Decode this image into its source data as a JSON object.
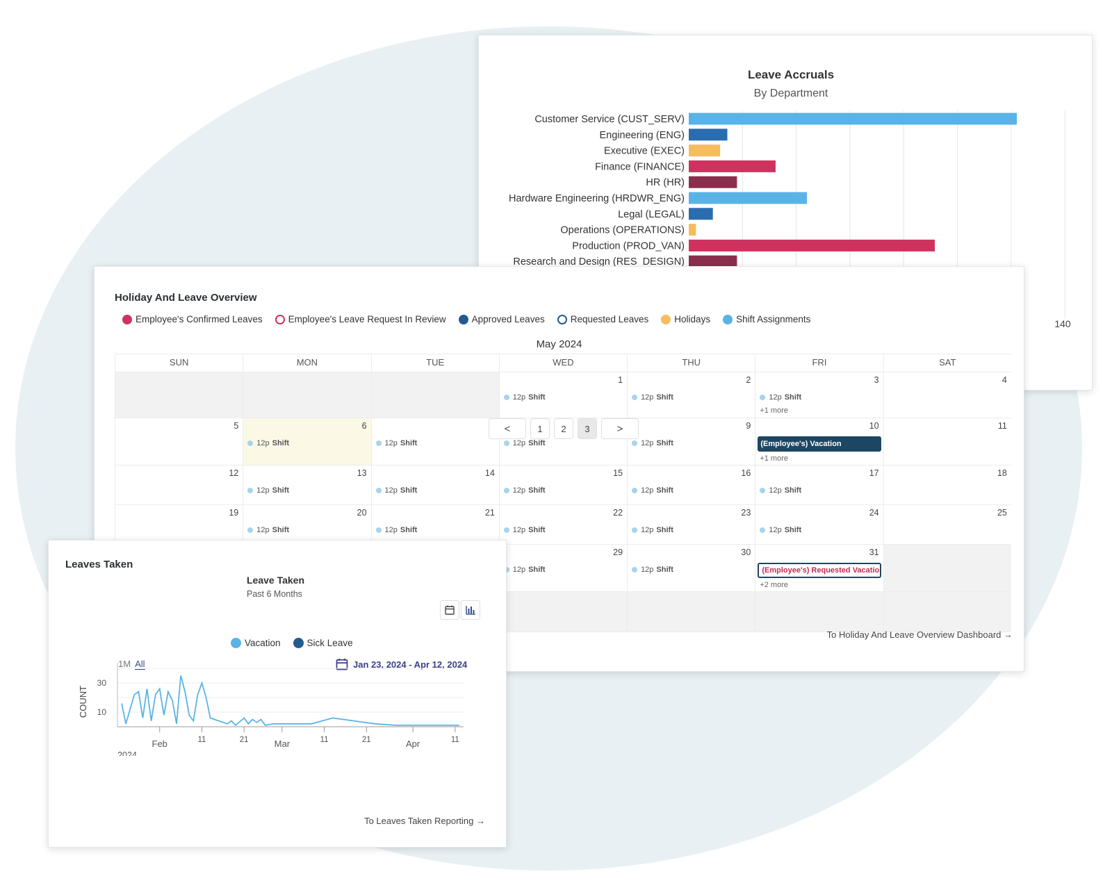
{
  "accruals": {
    "chart_data": {
      "type": "bar",
      "orientation": "horizontal",
      "title": "Leave Accruals",
      "subtitle": "By Department",
      "categories": [
        "Customer Service (CUST_SERV)",
        "Engineering (ENG)",
        "Executive (EXEC)",
        "Finance (FINANCE)",
        "HR (HR)",
        "Hardware Engineering (HRDWR_ENG)",
        "Legal (LEGAL)",
        "Operations (OPERATIONS)",
        "Production (PROD_VAN)",
        "Research and Design (RES_DESIGN)"
      ],
      "values": [
        136,
        16,
        13,
        36,
        20,
        49,
        10,
        3,
        102,
        20
      ],
      "colors": [
        "#5ab3e6",
        "#2a6cb0",
        "#f6bd5c",
        "#d0325f",
        "#8b2e4d",
        "#5ab3e6",
        "#2a6cb0",
        "#f6bd5c",
        "#d0325f",
        "#8b2e4d"
      ],
      "xlim": [
        0,
        155
      ],
      "x_tick_label": "140",
      "grid": true
    }
  },
  "overview": {
    "title": "Holiday And Leave Overview",
    "legend": [
      {
        "label": "Employee's Confirmed Leaves",
        "color": "#d0325f",
        "style": "filled"
      },
      {
        "label": "Employee's Leave Request In Review",
        "color": "#d0325f",
        "style": "outline"
      },
      {
        "label": "Approved Leaves",
        "color": "#245a8f",
        "style": "filled"
      },
      {
        "label": "Requested Leaves",
        "color": "#245a8f",
        "style": "outline"
      },
      {
        "label": "Holidays",
        "color": "#f6bd5c",
        "style": "filled"
      },
      {
        "label": "Shift Assignments",
        "color": "#5ab3e6",
        "style": "filled"
      }
    ],
    "month": "May 2024",
    "weekdays": [
      "SUN",
      "MON",
      "TUE",
      "WED",
      "THU",
      "FRI",
      "SAT"
    ],
    "shift_time": "12p",
    "shift_label": "Shift",
    "weeks": [
      [
        {
          "day": ""
        },
        {
          "day": ""
        },
        {
          "day": ""
        },
        {
          "day": "1",
          "shift": true
        },
        {
          "day": "2",
          "shift": true
        },
        {
          "day": "3",
          "shift": true,
          "more": "+1 more"
        },
        {
          "day": "4"
        }
      ],
      [
        {
          "day": "5"
        },
        {
          "day": "6",
          "shift": true,
          "today": true
        },
        {
          "day": "",
          "shift": true
        },
        {
          "day": "",
          "shift": true
        },
        {
          "day": "9",
          "shift": true
        },
        {
          "day": "10",
          "event": "(Employee's) Vacation",
          "event_type": "vac",
          "more": "+1 more"
        },
        {
          "day": "11"
        }
      ],
      [
        {
          "day": "12"
        },
        {
          "day": "13",
          "shift": true
        },
        {
          "day": "14",
          "shift": true
        },
        {
          "day": "15",
          "shift": true
        },
        {
          "day": "16",
          "shift": true
        },
        {
          "day": "17",
          "shift": true
        },
        {
          "day": "18"
        }
      ],
      [
        {
          "day": "19"
        },
        {
          "day": "20",
          "shift": true
        },
        {
          "day": "21",
          "shift": true
        },
        {
          "day": "22",
          "shift": true
        },
        {
          "day": "23",
          "shift": true
        },
        {
          "day": "24",
          "shift": true
        },
        {
          "day": "25"
        }
      ],
      [
        {
          "day": ""
        },
        {
          "day": ""
        },
        {
          "day": ""
        },
        {
          "day": "29",
          "shift": true
        },
        {
          "day": "30",
          "shift": true
        },
        {
          "day": "31",
          "event": "(Employee's) Requested Vacation",
          "event_type": "req",
          "more": "+2 more"
        },
        {
          "day": "",
          "out": true
        }
      ],
      [
        {
          "day": "",
          "out": true
        },
        {
          "day": "",
          "out": true
        },
        {
          "day": "",
          "out": true
        },
        {
          "day": "",
          "out": true
        },
        {
          "day": "",
          "out": true
        },
        {
          "day": "",
          "out": true
        },
        {
          "day": "",
          "out": true
        }
      ]
    ],
    "pager": {
      "prev": "<",
      "pages": [
        "1",
        "2",
        "3"
      ],
      "active": "3",
      "next": ">"
    },
    "link": "To Holiday And Leave Overview Dashboard →"
  },
  "leaves": {
    "title": "Leaves Taken",
    "chart_title": "Leave Taken",
    "chart_subtitle": "Past 6 Months",
    "calendar_icon": "calendar-icon",
    "chart_icon": "bar-chart-icon",
    "legend": [
      {
        "label": "Vacation",
        "color": "#5ab3e6"
      },
      {
        "label": "Sick Leave",
        "color": "#245a8f"
      }
    ],
    "range_buttons": [
      "1M",
      "All"
    ],
    "range_active": "All",
    "date_range": "Jan 23, 2024 - Apr 12, 2024",
    "link": "To Leaves Taken Reporting →",
    "chart_data": {
      "type": "line",
      "ylabel": "COUNT",
      "y_ticks": [
        "30",
        "10"
      ],
      "ylim": [
        0,
        40
      ],
      "x_ticks": [
        {
          "date": "2024-02-01",
          "label": "Feb"
        },
        {
          "date": "2024-02-11",
          "label": "11"
        },
        {
          "date": "2024-02-21",
          "label": "21"
        },
        {
          "date": "2024-03-01",
          "label": "Mar"
        },
        {
          "date": "2024-03-11",
          "label": "11"
        },
        {
          "date": "2024-03-21",
          "label": "21"
        },
        {
          "date": "2024-04-01",
          "label": "Apr"
        },
        {
          "date": "2024-04-11",
          "label": "11"
        }
      ],
      "year_label": "2024",
      "series": [
        {
          "name": "Vacation",
          "color": "#5ab3e6",
          "x": [
            "2024-01-23",
            "2024-01-24",
            "2024-01-26",
            "2024-01-27",
            "2024-01-28",
            "2024-01-29",
            "2024-01-30",
            "2024-01-31",
            "2024-02-01",
            "2024-02-02",
            "2024-02-03",
            "2024-02-04",
            "2024-02-05",
            "2024-02-06",
            "2024-02-07",
            "2024-02-08",
            "2024-02-09",
            "2024-02-10",
            "2024-02-11",
            "2024-02-12",
            "2024-02-13",
            "2024-02-15",
            "2024-02-17",
            "2024-02-18",
            "2024-02-19",
            "2024-02-21",
            "2024-02-22",
            "2024-02-23",
            "2024-02-24",
            "2024-02-25",
            "2024-02-26",
            "2024-02-28",
            "2024-03-01",
            "2024-03-04",
            "2024-03-08",
            "2024-03-13",
            "2024-03-18",
            "2024-03-23",
            "2024-03-28",
            "2024-04-02",
            "2024-04-07",
            "2024-04-12"
          ],
          "y": [
            16,
            2,
            22,
            24,
            6,
            26,
            4,
            22,
            26,
            8,
            24,
            18,
            2,
            35,
            24,
            8,
            4,
            22,
            30,
            20,
            6,
            4,
            2,
            4,
            1,
            6,
            2,
            5,
            3,
            5,
            1,
            2,
            2,
            2,
            2,
            6,
            4,
            2,
            1,
            1,
            1,
            1
          ]
        }
      ]
    }
  }
}
